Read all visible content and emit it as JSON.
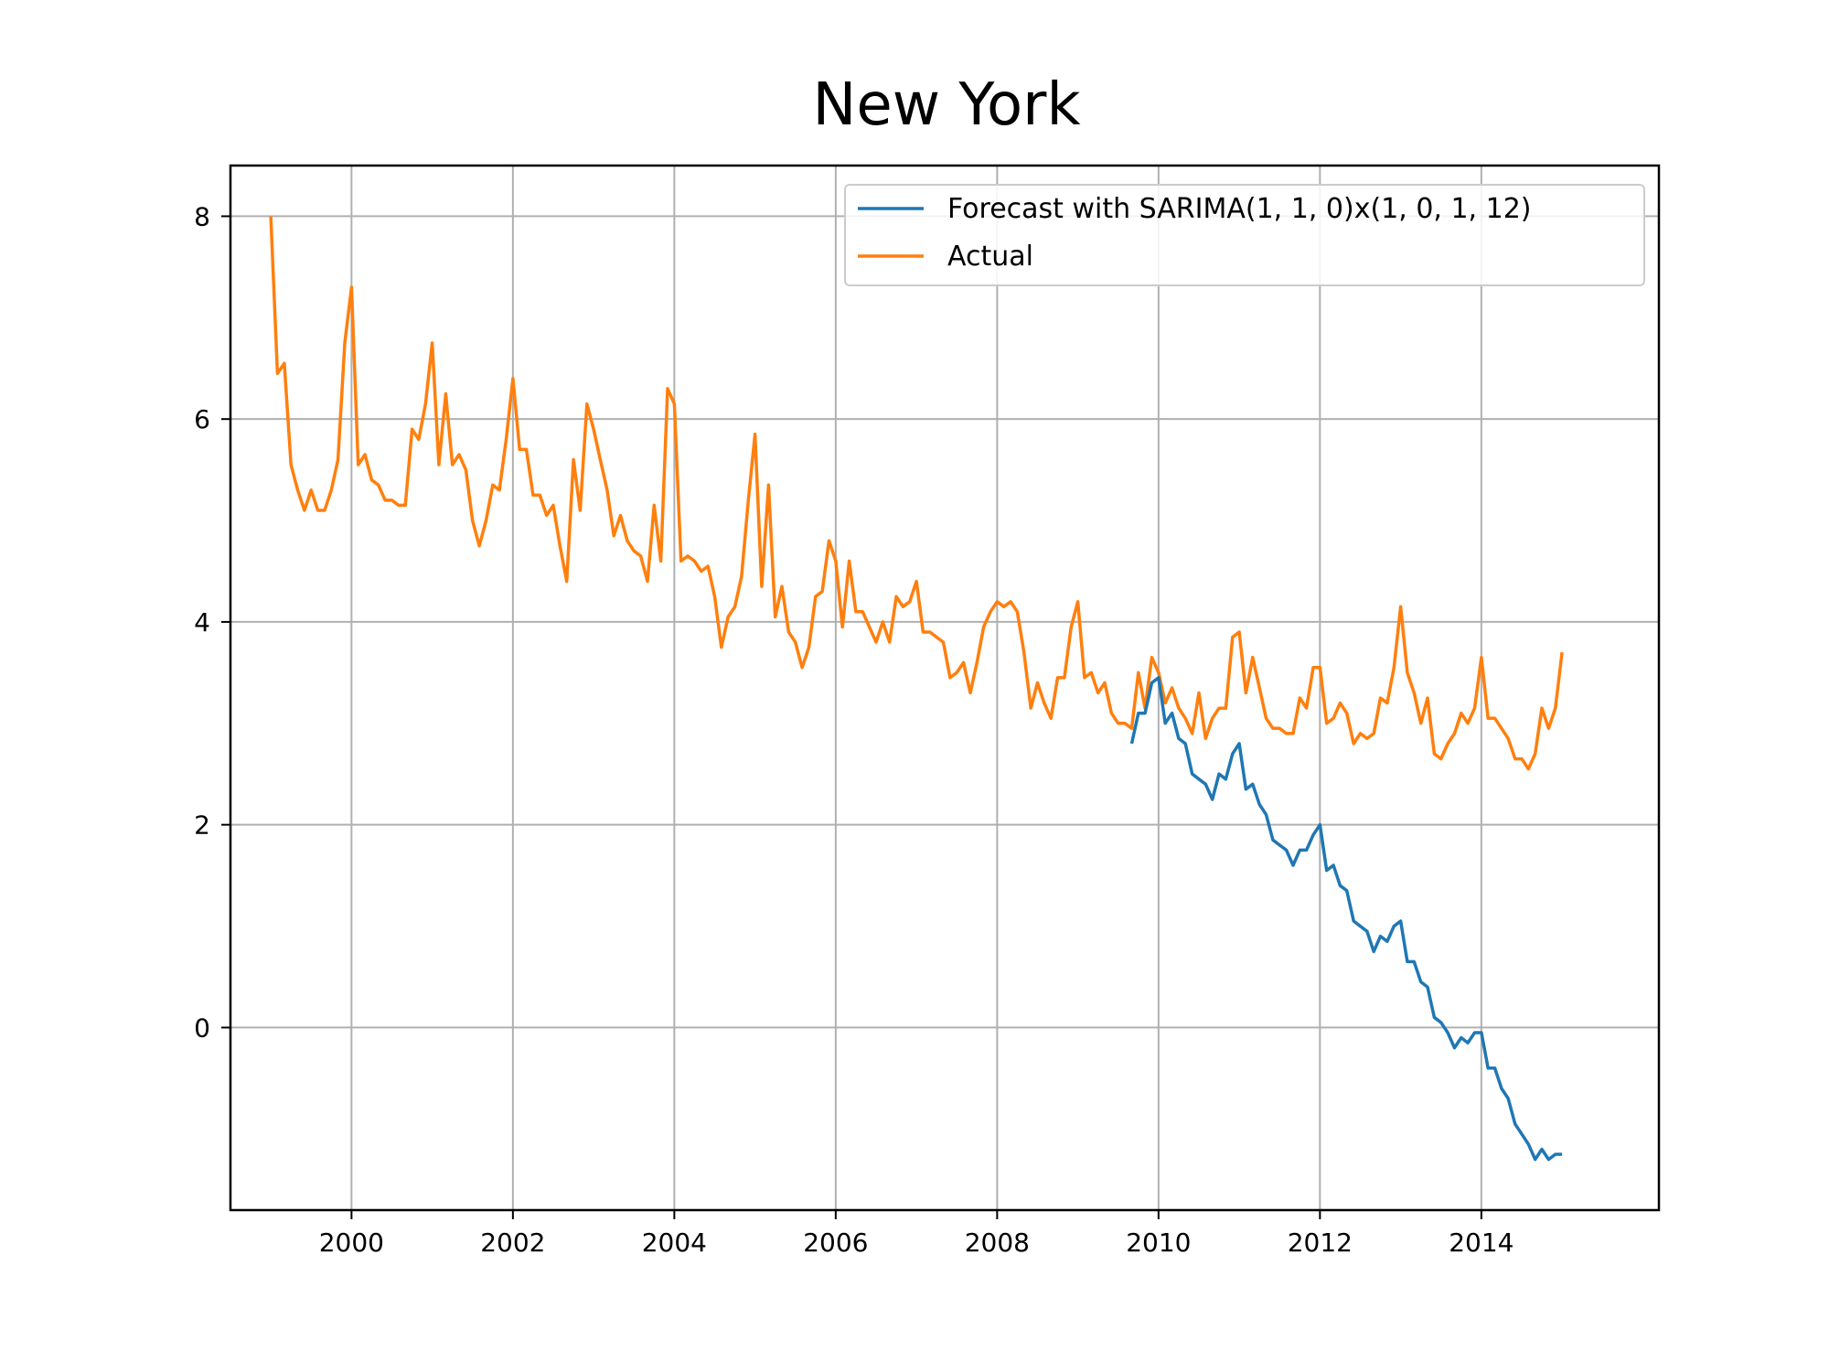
{
  "chart_data": {
    "type": "line",
    "title": "New York",
    "xlabel": "",
    "ylabel": "",
    "xlim": [
      1998.5,
      2016.2
    ],
    "ylim": [
      -1.8,
      8.5
    ],
    "x_ticks": [
      2000,
      2002,
      2004,
      2006,
      2008,
      2010,
      2012,
      2014
    ],
    "y_ticks": [
      0,
      2,
      4,
      6,
      8
    ],
    "grid": true,
    "legend_position": "top-right",
    "series": [
      {
        "name": "Forecast with SARIMA(1, 1, 0)x(1, 0, 1, 12)",
        "color": "#1f77b4",
        "x": [
          2009.667,
          2009.75,
          2009.833,
          2009.917,
          2010.0,
          2010.083,
          2010.167,
          2010.25,
          2010.333,
          2010.417,
          2010.5,
          2010.583,
          2010.667,
          2010.75,
          2010.833,
          2010.917,
          2011.0,
          2011.083,
          2011.167,
          2011.25,
          2011.333,
          2011.417,
          2011.5,
          2011.583,
          2011.667,
          2011.75,
          2011.833,
          2011.917,
          2012.0,
          2012.083,
          2012.167,
          2012.25,
          2012.333,
          2012.417,
          2012.5,
          2012.583,
          2012.667,
          2012.75,
          2012.833,
          2012.917,
          2013.0,
          2013.083,
          2013.167,
          2013.25,
          2013.333,
          2013.417,
          2013.5,
          2013.583,
          2013.667,
          2013.75,
          2013.833,
          2013.917,
          2014.0,
          2014.083,
          2014.167,
          2014.25,
          2014.333,
          2014.417,
          2014.5,
          2014.583,
          2014.667,
          2014.75,
          2014.833,
          2014.917,
          2015.0
        ],
        "y": [
          2.8,
          3.1,
          3.1,
          3.4,
          3.45,
          3.0,
          3.1,
          2.85,
          2.8,
          2.5,
          2.45,
          2.4,
          2.25,
          2.5,
          2.45,
          2.7,
          2.8,
          2.35,
          2.4,
          2.2,
          2.1,
          1.85,
          1.8,
          1.75,
          1.6,
          1.75,
          1.75,
          1.9,
          2.0,
          1.55,
          1.6,
          1.4,
          1.35,
          1.05,
          1.0,
          0.95,
          0.75,
          0.9,
          0.85,
          1.0,
          1.05,
          0.65,
          0.65,
          0.45,
          0.4,
          0.1,
          0.05,
          -0.05,
          -0.2,
          -0.1,
          -0.15,
          -0.05,
          -0.05,
          -0.4,
          -0.4,
          -0.6,
          -0.7,
          -0.95,
          -1.05,
          -1.15,
          -1.3,
          -1.2,
          -1.3,
          -1.25,
          -1.25
        ]
      },
      {
        "name": "Actual",
        "color": "#ff7f0e",
        "x": [
          1999.0,
          1999.083,
          1999.167,
          1999.25,
          1999.333,
          1999.417,
          1999.5,
          1999.583,
          1999.667,
          1999.75,
          1999.833,
          1999.917,
          2000.0,
          2000.083,
          2000.167,
          2000.25,
          2000.333,
          2000.417,
          2000.5,
          2000.583,
          2000.667,
          2000.75,
          2000.833,
          2000.917,
          2001.0,
          2001.083,
          2001.167,
          2001.25,
          2001.333,
          2001.417,
          2001.5,
          2001.583,
          2001.667,
          2001.75,
          2001.833,
          2001.917,
          2002.0,
          2002.083,
          2002.167,
          2002.25,
          2002.333,
          2002.417,
          2002.5,
          2002.583,
          2002.667,
          2002.75,
          2002.833,
          2002.917,
          2003.0,
          2003.083,
          2003.167,
          2003.25,
          2003.333,
          2003.417,
          2003.5,
          2003.583,
          2003.667,
          2003.75,
          2003.833,
          2003.917,
          2004.0,
          2004.083,
          2004.167,
          2004.25,
          2004.333,
          2004.417,
          2004.5,
          2004.583,
          2004.667,
          2004.75,
          2004.833,
          2004.917,
          2005.0,
          2005.083,
          2005.167,
          2005.25,
          2005.333,
          2005.417,
          2005.5,
          2005.583,
          2005.667,
          2005.75,
          2005.833,
          2005.917,
          2006.0,
          2006.083,
          2006.167,
          2006.25,
          2006.333,
          2006.417,
          2006.5,
          2006.583,
          2006.667,
          2006.75,
          2006.833,
          2006.917,
          2007.0,
          2007.083,
          2007.167,
          2007.25,
          2007.333,
          2007.417,
          2007.5,
          2007.583,
          2007.667,
          2007.75,
          2007.833,
          2007.917,
          2008.0,
          2008.083,
          2008.167,
          2008.25,
          2008.333,
          2008.417,
          2008.5,
          2008.583,
          2008.667,
          2008.75,
          2008.833,
          2008.917,
          2009.0,
          2009.083,
          2009.167,
          2009.25,
          2009.333,
          2009.417,
          2009.5,
          2009.583,
          2009.667,
          2009.75,
          2009.833,
          2009.917,
          2010.0,
          2010.083,
          2010.167,
          2010.25,
          2010.333,
          2010.417,
          2010.5,
          2010.583,
          2010.667,
          2010.75,
          2010.833,
          2010.917,
          2011.0,
          2011.083,
          2011.167,
          2011.25,
          2011.333,
          2011.417,
          2011.5,
          2011.583,
          2011.667,
          2011.75,
          2011.833,
          2011.917,
          2012.0,
          2012.083,
          2012.167,
          2012.25,
          2012.333,
          2012.417,
          2012.5,
          2012.583,
          2012.667,
          2012.75,
          2012.833,
          2012.917,
          2013.0,
          2013.083,
          2013.167,
          2013.25,
          2013.333,
          2013.417,
          2013.5,
          2013.583,
          2013.667,
          2013.75,
          2013.833,
          2013.917,
          2014.0,
          2014.083,
          2014.167,
          2014.25,
          2014.333,
          2014.417,
          2014.5,
          2014.583,
          2014.667,
          2014.75,
          2014.833,
          2014.917,
          2015.0
        ],
        "y": [
          8.0,
          6.45,
          6.55,
          5.55,
          5.3,
          5.1,
          5.3,
          5.1,
          5.1,
          5.3,
          5.6,
          6.75,
          7.3,
          5.55,
          5.65,
          5.4,
          5.35,
          5.2,
          5.2,
          5.15,
          5.15,
          5.9,
          5.8,
          6.15,
          6.75,
          5.55,
          6.25,
          5.55,
          5.65,
          5.5,
          5.0,
          4.75,
          5.0,
          5.35,
          5.3,
          5.8,
          6.4,
          5.7,
          5.7,
          5.25,
          5.25,
          5.05,
          5.15,
          4.75,
          4.4,
          5.6,
          5.1,
          6.15,
          5.9,
          5.6,
          5.3,
          4.85,
          5.05,
          4.8,
          4.7,
          4.65,
          4.4,
          5.15,
          4.6,
          6.3,
          6.15,
          4.6,
          4.65,
          4.6,
          4.5,
          4.55,
          4.25,
          3.75,
          4.05,
          4.15,
          4.45,
          5.2,
          5.85,
          4.35,
          5.35,
          4.05,
          4.35,
          3.9,
          3.8,
          3.55,
          3.75,
          4.25,
          4.3,
          4.8,
          4.6,
          3.95,
          4.6,
          4.1,
          4.1,
          3.95,
          3.8,
          4.0,
          3.8,
          4.25,
          4.15,
          4.2,
          4.4,
          3.9,
          3.9,
          3.85,
          3.8,
          3.45,
          3.5,
          3.6,
          3.3,
          3.6,
          3.95,
          4.1,
          4.2,
          4.15,
          4.2,
          4.1,
          3.7,
          3.15,
          3.4,
          3.2,
          3.05,
          3.45,
          3.45,
          3.95,
          4.2,
          3.45,
          3.5,
          3.3,
          3.4,
          3.1,
          3.0,
          3.0,
          2.95,
          3.5,
          3.15,
          3.65,
          3.5,
          3.2,
          3.35,
          3.15,
          3.05,
          2.9,
          3.3,
          2.85,
          3.05,
          3.15,
          3.15,
          3.85,
          3.9,
          3.3,
          3.65,
          3.35,
          3.05,
          2.95,
          2.95,
          2.9,
          2.9,
          3.25,
          3.15,
          3.55,
          3.55,
          3.0,
          3.05,
          3.2,
          3.1,
          2.8,
          2.9,
          2.85,
          2.9,
          3.25,
          3.2,
          3.55,
          4.15,
          3.5,
          3.3,
          3.0,
          3.25,
          2.7,
          2.65,
          2.8,
          2.9,
          3.1,
          3.0,
          3.15,
          3.65,
          3.05,
          3.05,
          2.95,
          2.85,
          2.65,
          2.65,
          2.55,
          2.7,
          3.15,
          2.95,
          3.15,
          3.7
        ]
      }
    ]
  }
}
